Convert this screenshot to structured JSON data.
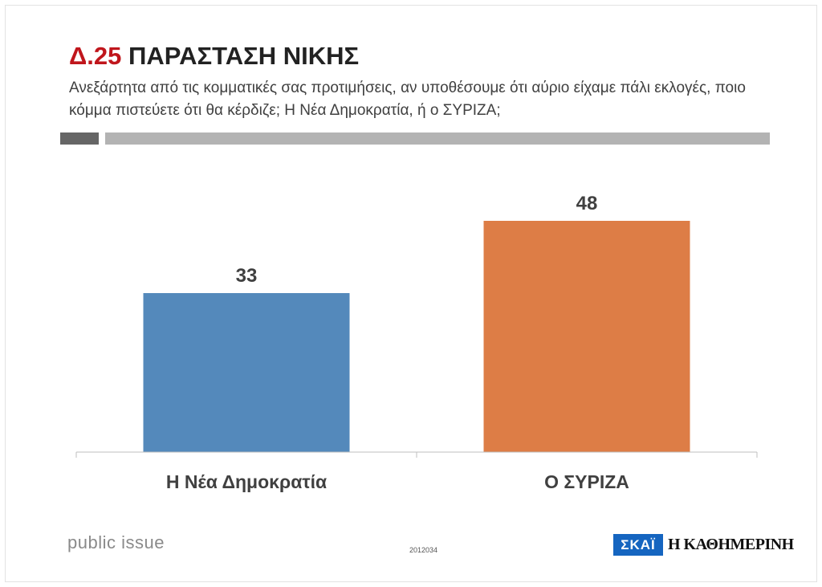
{
  "header": {
    "code": "Δ.25",
    "title": "ΠΑΡΑΣΤΑΣΗ ΝΙΚΗΣ",
    "question": "Ανεξάρτητα από τις κομματικές σας προτιμήσεις, αν υποθέσουμε ότι αύριο είχαμε πάλι εκλογές, ποιο κόμμα πιστεύετε ότι θα κέρδιζε; Η Νέα Δημοκρατία, ή ο ΣΥΡΙΖΑ;"
  },
  "chart_data": {
    "type": "bar",
    "categories": [
      "Η Νέα Δημοκρατία",
      "Ο ΣΥΡΙΖΑ"
    ],
    "values": [
      33,
      48
    ],
    "value_labels": [
      "33",
      "48"
    ],
    "colors": [
      "#5489bb",
      "#dd7d46"
    ],
    "ylim": [
      0,
      60
    ],
    "grid": false,
    "legend": "none"
  },
  "footer": {
    "brand_left": "public issue",
    "code": "2012034",
    "logo_skai": "ΣΚΑΪ",
    "logo_kathimerini": "Η ΚΑΘΗΜΕΡΙΝΗ"
  },
  "colors": {
    "title_code": "#c0161c",
    "title": "#222222",
    "rule_dark": "#666666",
    "rule_light": "#b3b3b3",
    "axis": "#bfbfbf"
  }
}
